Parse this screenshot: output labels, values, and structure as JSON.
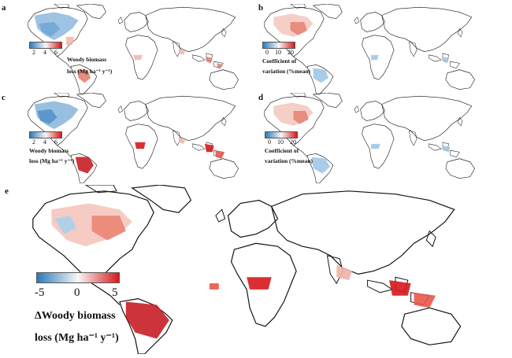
{
  "panels": {
    "a": {
      "label": "a",
      "legend": {
        "ticks": [
          "2",
          "4",
          "6"
        ],
        "title_line1": "Woody biomass",
        "title_line2": "loss (Mg ha⁻¹ y⁻¹)"
      }
    },
    "b": {
      "label": "b",
      "legend": {
        "ticks": [
          "0",
          "10",
          "20"
        ],
        "title_line1": "Coefficient of",
        "title_line2": "variation (%mean)"
      }
    },
    "c": {
      "label": "c",
      "legend": {
        "ticks": [
          "2",
          "4",
          "6"
        ],
        "title_line1": "Woody biomass",
        "title_line2": "loss (Mg ha⁻¹ y⁻¹)"
      }
    },
    "d": {
      "label": "d",
      "legend": {
        "ticks": [
          "0",
          "10",
          "20"
        ],
        "title_line1": "Coefficient of",
        "title_line2": "variation (%mean)"
      }
    },
    "e": {
      "label": "e",
      "legend": {
        "ticks": [
          "-5",
          "0",
          "5"
        ],
        "title_line1": "ΔWoody biomass",
        "title_line2": "loss (Mg ha⁻¹ y⁻¹)"
      }
    }
  },
  "colors": {
    "blue": "#2b7bba",
    "light": "#f7f7f7",
    "red": "#d7191c",
    "coast": "#111111"
  }
}
